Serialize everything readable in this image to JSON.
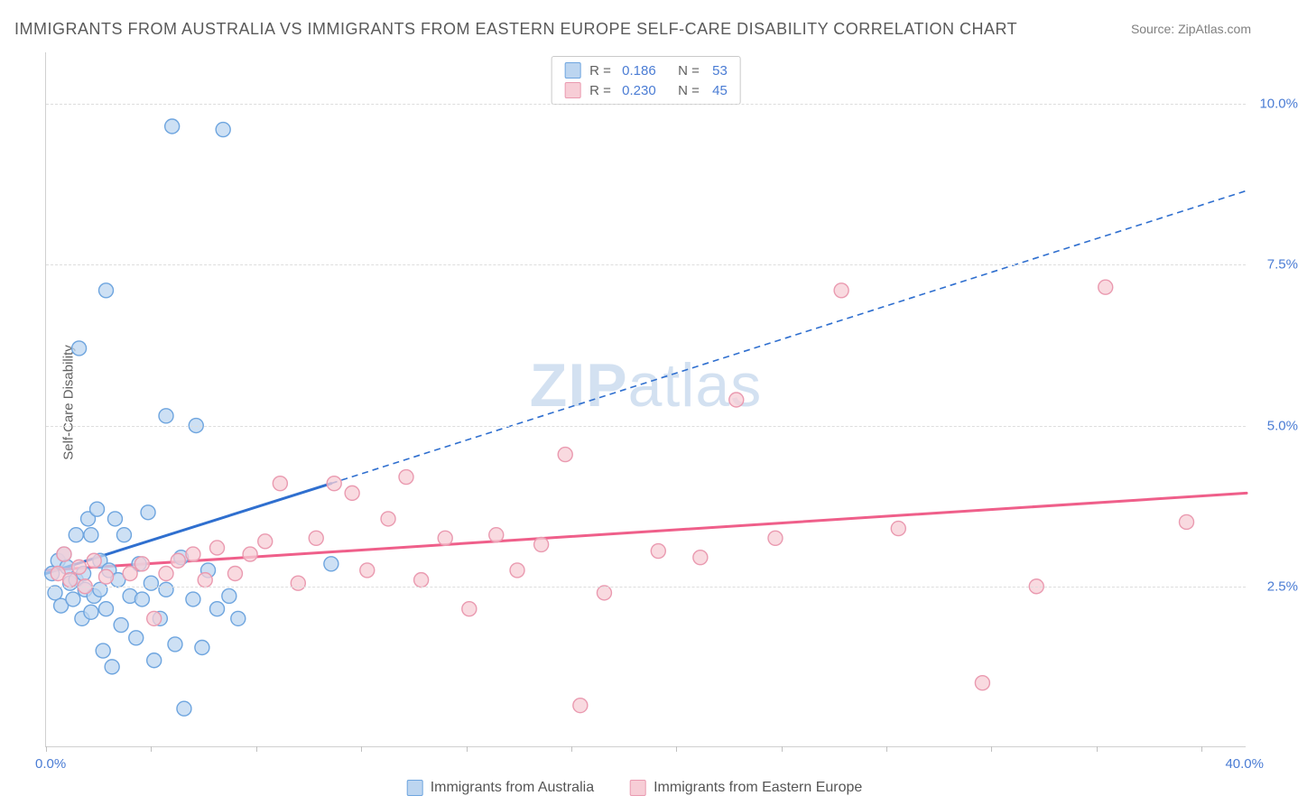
{
  "title": "IMMIGRANTS FROM AUSTRALIA VS IMMIGRANTS FROM EASTERN EUROPE SELF-CARE DISABILITY CORRELATION CHART",
  "source": "Source: ZipAtlas.com",
  "y_axis_label": "Self-Care Disability",
  "watermark_zip": "ZIP",
  "watermark_atlas": "atlas",
  "chart": {
    "type": "scatter",
    "background_color": "#ffffff",
    "grid_color": "#dddddd",
    "axis_color": "#d0d0d0",
    "tick_color": "#4a7cd4",
    "xlim": [
      0,
      40
    ],
    "ylim": [
      0,
      10.8
    ],
    "x_min_label": "0.0%",
    "x_max_label": "40.0%",
    "y_ticks": [
      {
        "value": 2.5,
        "label": "2.5%"
      },
      {
        "value": 5.0,
        "label": "5.0%"
      },
      {
        "value": 7.5,
        "label": "7.5%"
      },
      {
        "value": 10.0,
        "label": "10.0%"
      }
    ],
    "x_tick_positions": [
      0,
      3.5,
      7,
      10.5,
      14,
      17.5,
      21,
      24.5,
      28,
      31.5,
      35,
      38.5
    ],
    "marker_radius": 8,
    "marker_stroke_width": 1.4,
    "trend_line_width": 3,
    "trend_dash": "7,5",
    "series": [
      {
        "name": "Immigrants from Australia",
        "fill": "#bcd5f0",
        "stroke": "#6ea5df",
        "swatch_fill": "#bcd5f0",
        "swatch_stroke": "#6ea5df",
        "R": "0.186",
        "N": "53",
        "trend": {
          "color": "#2f6fcf",
          "solid_from": [
            0,
            2.7
          ],
          "solid_to": [
            9.5,
            4.1
          ],
          "dash_to": [
            40,
            8.65
          ]
        },
        "points": [
          [
            0.2,
            2.7
          ],
          [
            0.3,
            2.4
          ],
          [
            0.4,
            2.9
          ],
          [
            0.5,
            2.2
          ],
          [
            0.6,
            3.0
          ],
          [
            0.7,
            2.8
          ],
          [
            0.8,
            2.55
          ],
          [
            0.9,
            2.3
          ],
          [
            1.0,
            3.3
          ],
          [
            1.0,
            2.6
          ],
          [
            1.1,
            6.2
          ],
          [
            1.2,
            2.0
          ],
          [
            1.25,
            2.7
          ],
          [
            1.3,
            2.45
          ],
          [
            1.4,
            3.55
          ],
          [
            1.5,
            2.1
          ],
          [
            1.5,
            3.3
          ],
          [
            1.6,
            2.35
          ],
          [
            1.7,
            3.7
          ],
          [
            1.8,
            2.45
          ],
          [
            1.8,
            2.9
          ],
          [
            1.9,
            1.5
          ],
          [
            2.0,
            7.1
          ],
          [
            2.0,
            2.15
          ],
          [
            2.1,
            2.75
          ],
          [
            2.2,
            1.25
          ],
          [
            2.3,
            3.55
          ],
          [
            2.4,
            2.6
          ],
          [
            2.5,
            1.9
          ],
          [
            2.6,
            3.3
          ],
          [
            2.8,
            2.35
          ],
          [
            3.0,
            1.7
          ],
          [
            3.1,
            2.85
          ],
          [
            3.2,
            2.3
          ],
          [
            3.4,
            3.65
          ],
          [
            3.5,
            2.55
          ],
          [
            3.6,
            1.35
          ],
          [
            3.8,
            2.0
          ],
          [
            4.0,
            5.15
          ],
          [
            4.0,
            2.45
          ],
          [
            4.2,
            9.65
          ],
          [
            4.3,
            1.6
          ],
          [
            4.5,
            2.95
          ],
          [
            4.6,
            0.6
          ],
          [
            4.9,
            2.3
          ],
          [
            5.0,
            5.0
          ],
          [
            5.2,
            1.55
          ],
          [
            5.4,
            2.75
          ],
          [
            5.7,
            2.15
          ],
          [
            5.9,
            9.6
          ],
          [
            6.1,
            2.35
          ],
          [
            6.4,
            2.0
          ],
          [
            9.5,
            2.85
          ]
        ]
      },
      {
        "name": "Immigrants from Eastern Europe",
        "fill": "#f7cdd6",
        "stroke": "#ea9ab0",
        "swatch_fill": "#f7cdd6",
        "swatch_stroke": "#ea9ab0",
        "R": "0.230",
        "N": "45",
        "trend": {
          "color": "#ef5f8a",
          "solid_from": [
            0,
            2.75
          ],
          "solid_to": [
            40,
            3.95
          ],
          "dash_to": null
        },
        "points": [
          [
            0.4,
            2.7
          ],
          [
            0.6,
            3.0
          ],
          [
            0.8,
            2.6
          ],
          [
            1.1,
            2.8
          ],
          [
            1.3,
            2.5
          ],
          [
            1.6,
            2.9
          ],
          [
            2.0,
            2.65
          ],
          [
            2.8,
            2.7
          ],
          [
            3.2,
            2.85
          ],
          [
            3.6,
            2.0
          ],
          [
            4.0,
            2.7
          ],
          [
            4.4,
            2.9
          ],
          [
            4.9,
            3.0
          ],
          [
            5.3,
            2.6
          ],
          [
            5.7,
            3.1
          ],
          [
            6.3,
            2.7
          ],
          [
            6.8,
            3.0
          ],
          [
            7.3,
            3.2
          ],
          [
            7.8,
            4.1
          ],
          [
            8.4,
            2.55
          ],
          [
            9.0,
            3.25
          ],
          [
            9.6,
            4.1
          ],
          [
            10.2,
            3.95
          ],
          [
            10.7,
            2.75
          ],
          [
            11.4,
            3.55
          ],
          [
            12.0,
            4.2
          ],
          [
            12.5,
            2.6
          ],
          [
            13.3,
            3.25
          ],
          [
            14.1,
            2.15
          ],
          [
            15.0,
            3.3
          ],
          [
            15.7,
            2.75
          ],
          [
            16.5,
            3.15
          ],
          [
            17.3,
            4.55
          ],
          [
            17.8,
            0.65
          ],
          [
            18.6,
            2.4
          ],
          [
            20.4,
            3.05
          ],
          [
            21.8,
            2.95
          ],
          [
            23.0,
            5.4
          ],
          [
            24.3,
            3.25
          ],
          [
            26.5,
            7.1
          ],
          [
            28.4,
            3.4
          ],
          [
            31.2,
            1.0
          ],
          [
            33.0,
            2.5
          ],
          [
            35.3,
            7.15
          ],
          [
            38.0,
            3.5
          ]
        ]
      }
    ]
  },
  "legend_bottom": [
    {
      "swatch_fill": "#bcd5f0",
      "swatch_stroke": "#6ea5df",
      "label": "Immigrants from Australia"
    },
    {
      "swatch_fill": "#f7cdd6",
      "swatch_stroke": "#ea9ab0",
      "label": "Immigrants from Eastern Europe"
    }
  ]
}
